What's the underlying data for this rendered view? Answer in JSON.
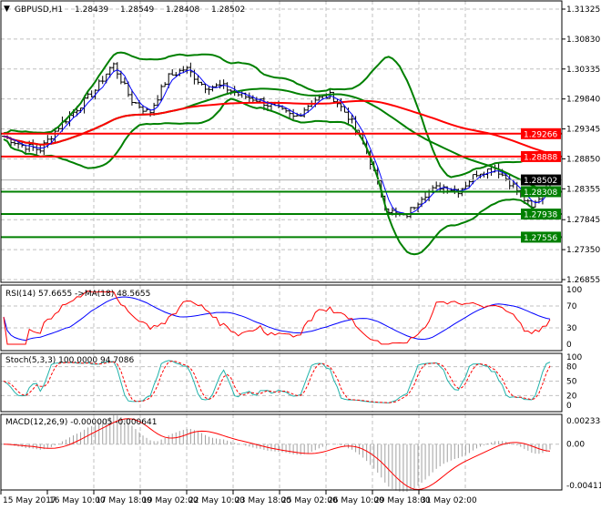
{
  "header": {
    "symbol": "GBPUSD,H1",
    "open": "1.28439",
    "high": "1.28549",
    "low": "1.28408",
    "close": "1.28502"
  },
  "colors": {
    "bar": "#000000",
    "level_red": "#ff0000",
    "level_green": "#008000",
    "bands": "#008000",
    "ma_long": "#ff0000",
    "ma_fast": "#0000ff",
    "rsi": "#ff0000",
    "rsi_ma": "#0000ff",
    "stoch_main": "#20b2aa",
    "stoch_signal": "#ff0000",
    "macd_hist": "#a0a0a0",
    "macd_signal": "#ff0000"
  },
  "chart_data": [
    {
      "type": "candlestick",
      "title": "GBPUSD,H1",
      "ylim": [
        1.26855,
        1.31325
      ],
      "y_ticks": [
        "1.31325",
        "1.30830",
        "1.30335",
        "1.29840",
        "1.29345",
        "1.28850",
        "1.28355",
        "1.27845",
        "1.27350",
        "1.26855"
      ],
      "x_ticks": [
        "15 May 2017",
        "16 May 10:00",
        "17 May 18:00",
        "19 May 02:00",
        "22 May 10:00",
        "23 May 18:00",
        "25 May 02:00",
        "26 May 10:00",
        "29 May 18:00",
        "31 May 02:00"
      ],
      "close_approx": [
        1.29225,
        1.29075,
        1.29,
        1.29375,
        1.29675,
        1.29975,
        1.30425,
        1.29825,
        1.296,
        1.302,
        1.3035,
        1.3005,
        1.3005,
        1.299,
        1.29825,
        1.29675,
        1.29525,
        1.29825,
        1.299,
        1.29525,
        1.28925,
        1.28025,
        1.27875,
        1.2825,
        1.284,
        1.28325,
        1.28625,
        1.287,
        1.284,
        1.28025,
        1.28502
      ],
      "levels": [
        {
          "value": "1.29266",
          "color": "red"
        },
        {
          "value": "1.28888",
          "color": "red"
        },
        {
          "value": "1.28502",
          "color": "current"
        },
        {
          "value": "1.28308",
          "color": "green"
        },
        {
          "value": "1.27938",
          "color": "green"
        },
        {
          "value": "1.27556",
          "color": "green"
        }
      ],
      "overlays": [
        "Bollinger Bands",
        "Moving Averages"
      ],
      "grid": true
    },
    {
      "type": "line",
      "label": "RSI(14) 57.6655  ->MA(18) 48.5655",
      "ylim": [
        0,
        100
      ],
      "y_ticks": [
        "100",
        "70",
        "30",
        "0"
      ]
    },
    {
      "type": "line",
      "label": "Stoch(5,3,3) 100.0000 94.7086",
      "ylim": [
        0,
        100
      ],
      "y_ticks": [
        "100",
        "80",
        "50",
        "20",
        "0"
      ]
    },
    {
      "type": "bar",
      "label": "MACD(12,26,9) -0.000005 -0.000641",
      "ylim": [
        -0.004113,
        0.002338
      ],
      "y_ticks": [
        "0.002338",
        "0.00",
        "-0.004113"
      ]
    }
  ]
}
